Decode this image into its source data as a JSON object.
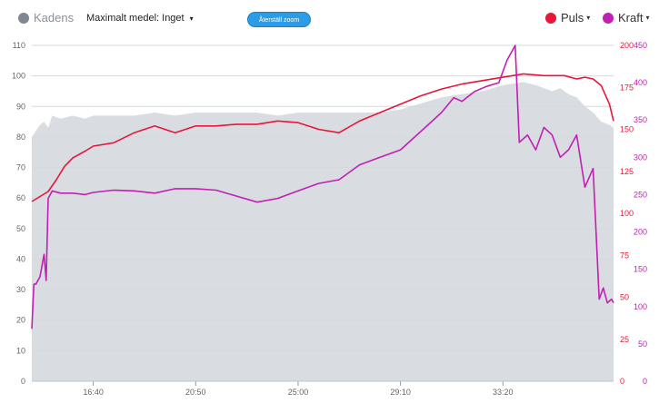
{
  "header": {
    "kadens_label": "Kadens",
    "medel_label": "Maximalt medel: Inget",
    "reset_label": "Återställ zoom",
    "puls_label": "Puls",
    "kraft_label": "Kraft",
    "caret": "▾"
  },
  "colors": {
    "kadens": "#7f8790",
    "puls": "#e8163a",
    "kraft": "#c21fb3",
    "area": "#d9dde2",
    "grid": "#d6d9dc"
  },
  "chart_data": {
    "type": "line",
    "x_ticks": [
      "16:40",
      "20:50",
      "25:00",
      "29:10",
      "33:20"
    ],
    "x_tick_positions_sec": [
      1000,
      1250,
      1500,
      1750,
      2000
    ],
    "x_range_sec": [
      850,
      2270
    ],
    "axes": {
      "kadens": {
        "min": 0,
        "max": 110,
        "ticks": [
          "0",
          "10",
          "20",
          "30",
          "40",
          "50",
          "60",
          "70",
          "80",
          "90",
          "100",
          "110"
        ]
      },
      "puls": {
        "min": 0,
        "max": 200,
        "ticks": [
          "0",
          "25",
          "50",
          "75",
          "100",
          "125",
          "150",
          "175",
          "200"
        ]
      },
      "kraft": {
        "min": 0,
        "max": 450,
        "ticks": [
          "0",
          "50",
          "100",
          "150",
          "200",
          "250",
          "300",
          "350",
          "400",
          "450"
        ]
      }
    },
    "series": [
      {
        "name": "Kadens",
        "axis": "kadens",
        "style": "area",
        "x": [
          850,
          870,
          880,
          890,
          900,
          920,
          950,
          980,
          1000,
          1050,
          1100,
          1150,
          1200,
          1250,
          1300,
          1350,
          1400,
          1450,
          1500,
          1550,
          1600,
          1650,
          1700,
          1750,
          1800,
          1850,
          1900,
          1950,
          2000,
          2050,
          2080,
          2100,
          2120,
          2140,
          2160,
          2180,
          2200,
          2220,
          2240,
          2260,
          2270
        ],
        "values": [
          80,
          84,
          85,
          83,
          87,
          86,
          87,
          86,
          87,
          87,
          87,
          88,
          87,
          88,
          88,
          88,
          88,
          87,
          88,
          88,
          88,
          88,
          88,
          89,
          91,
          93,
          94,
          95,
          97,
          98,
          97,
          96,
          95,
          96,
          94,
          93,
          90,
          88,
          85,
          84,
          83
        ]
      },
      {
        "name": "Puls",
        "axis": "puls",
        "x": [
          850,
          870,
          890,
          910,
          930,
          950,
          980,
          1000,
          1050,
          1100,
          1150,
          1200,
          1250,
          1300,
          1350,
          1400,
          1450,
          1500,
          1550,
          1600,
          1650,
          1700,
          1750,
          1800,
          1850,
          1900,
          1950,
          2000,
          2050,
          2100,
          2150,
          2180,
          2200,
          2220,
          2240,
          2260,
          2270
        ],
        "values": [
          107,
          110,
          113,
          120,
          128,
          133,
          137,
          140,
          142,
          148,
          152,
          148,
          152,
          152,
          153,
          153,
          155,
          154,
          150,
          148,
          155,
          160,
          165,
          170,
          174,
          177,
          179,
          181,
          183,
          182,
          182,
          180,
          181,
          180,
          176,
          165,
          155
        ]
      },
      {
        "name": "Kraft",
        "axis": "kraft",
        "x": [
          850,
          855,
          860,
          870,
          880,
          885,
          890,
          900,
          920,
          950,
          980,
          1000,
          1050,
          1100,
          1150,
          1200,
          1250,
          1300,
          1350,
          1400,
          1450,
          1500,
          1550,
          1600,
          1650,
          1700,
          1750,
          1800,
          1850,
          1880,
          1900,
          1930,
          1960,
          1990,
          2010,
          2030,
          2040,
          2060,
          2080,
          2100,
          2120,
          2140,
          2160,
          2180,
          2200,
          2220,
          2235,
          2245,
          2255,
          2265,
          2270
        ],
        "values": [
          70,
          130,
          130,
          140,
          170,
          135,
          245,
          255,
          252,
          252,
          250,
          253,
          256,
          255,
          252,
          258,
          258,
          256,
          248,
          240,
          245,
          255,
          265,
          270,
          290,
          300,
          310,
          335,
          360,
          380,
          375,
          388,
          395,
          400,
          430,
          450,
          320,
          330,
          310,
          340,
          330,
          300,
          310,
          330,
          260,
          285,
          110,
          125,
          105,
          110,
          105
        ]
      }
    ]
  }
}
